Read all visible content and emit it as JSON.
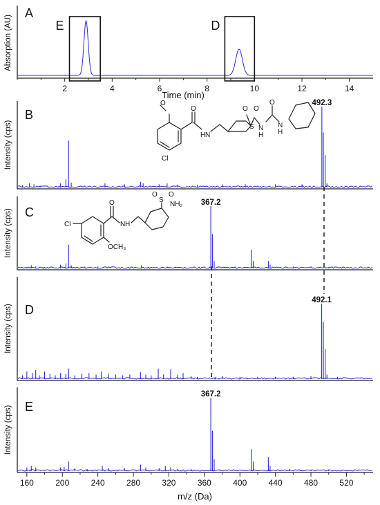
{
  "panels": [
    {
      "letter": "A"
    },
    {
      "letter": "B"
    },
    {
      "letter": "C"
    },
    {
      "letter": "D"
    },
    {
      "letter": "E"
    }
  ],
  "chromatogram": {
    "ylabel": "Absorption (AU)",
    "xlabel": "Time (min)",
    "box_labels": [
      "E",
      "D"
    ]
  },
  "spectra": {
    "ylabel": "Intensity (cps)",
    "xlabel": "m/z (Da)"
  },
  "structures": {
    "B": {
      "labels": [
        "O",
        "O",
        "H",
        "N",
        "S",
        "O",
        "O",
        "N",
        "H",
        "O",
        "N",
        "H",
        "Cl"
      ]
    },
    "C": {
      "labels": [
        "Cl",
        "O",
        "N",
        "H",
        "OCH₃",
        "S",
        "O",
        "O",
        "NH₂"
      ]
    }
  },
  "chart_data": [
    {
      "type": "line",
      "panel": "A",
      "xlabel": "Time (min)",
      "ylabel": "Absorption (AU)",
      "xlim": [
        0,
        15
      ],
      "xticks": [
        2,
        4,
        6,
        8,
        10,
        12,
        14
      ],
      "peaks": [
        {
          "x": 2.9,
          "height": 1.0,
          "width": 0.09
        },
        {
          "x": 9.35,
          "height": 0.48,
          "width": 0.14
        }
      ],
      "boxes": [
        {
          "label": "E",
          "x_range": [
            2.2,
            3.5
          ]
        },
        {
          "label": "D",
          "x_range": [
            8.75,
            10.0
          ]
        }
      ]
    },
    {
      "type": "bar",
      "panel": "B",
      "xlabel": "m/z (Da)",
      "ylabel": "Intensity (cps)",
      "xlim": [
        150,
        550
      ],
      "xticks": [
        160,
        200,
        240,
        280,
        320,
        360,
        400,
        440,
        480,
        520
      ],
      "annotations": [
        {
          "label": "492.3",
          "x": 492.3
        }
      ],
      "peaks": [
        [
          155,
          0.03
        ],
        [
          163,
          0.05
        ],
        [
          168,
          0.04
        ],
        [
          175,
          0.02
        ],
        [
          198,
          0.05
        ],
        [
          204,
          0.1
        ],
        [
          207,
          0.58
        ],
        [
          210,
          0.06
        ],
        [
          248,
          0.05
        ],
        [
          270,
          0.04
        ],
        [
          288,
          0.07
        ],
        [
          291,
          0.05
        ],
        [
          309,
          0.04
        ],
        [
          318,
          0.05
        ],
        [
          330,
          0.03
        ],
        [
          352,
          0.03
        ],
        [
          380,
          0.04
        ],
        [
          406,
          0.04
        ],
        [
          440,
          0.04
        ],
        [
          470,
          0.04
        ],
        [
          492.3,
          1.0
        ],
        [
          494,
          0.68
        ],
        [
          496,
          0.4
        ],
        [
          498,
          0.05
        ]
      ]
    },
    {
      "type": "bar",
      "panel": "C",
      "xlabel": "m/z (Da)",
      "ylabel": "Intensity (cps)",
      "xlim": [
        150,
        550
      ],
      "xticks": [
        160,
        200,
        240,
        280,
        320,
        360,
        400,
        440,
        480,
        520
      ],
      "annotations": [
        {
          "label": "367.2",
          "x": 367.2
        }
      ],
      "peaks": [
        [
          160,
          0.02
        ],
        [
          165,
          0.05
        ],
        [
          170,
          0.03
        ],
        [
          178,
          0.02
        ],
        [
          198,
          0.06
        ],
        [
          204,
          0.08
        ],
        [
          207,
          0.38
        ],
        [
          210,
          0.05
        ],
        [
          240,
          0.03
        ],
        [
          289,
          0.05
        ],
        [
          320,
          0.02
        ],
        [
          367.2,
          1.0
        ],
        [
          369,
          0.55
        ],
        [
          371,
          0.12
        ],
        [
          413,
          0.3
        ],
        [
          415,
          0.12
        ],
        [
          432,
          0.12
        ],
        [
          434,
          0.06
        ],
        [
          460,
          0.03
        ],
        [
          500,
          0.02
        ]
      ]
    },
    {
      "type": "bar",
      "panel": "D",
      "xlabel": "m/z (Da)",
      "ylabel": "Intensity (cps)",
      "xlim": [
        150,
        550
      ],
      "xticks": [
        160,
        200,
        240,
        280,
        320,
        360,
        400,
        440,
        480,
        520
      ],
      "annotations": [
        {
          "label": "492.1",
          "x": 492.1
        }
      ],
      "peaks": [
        [
          155,
          0.05
        ],
        [
          160,
          0.1
        ],
        [
          166,
          0.08
        ],
        [
          170,
          0.12
        ],
        [
          174,
          0.05
        ],
        [
          180,
          0.1
        ],
        [
          186,
          0.07
        ],
        [
          192,
          0.05
        ],
        [
          198,
          0.08
        ],
        [
          204,
          0.07
        ],
        [
          207,
          0.14
        ],
        [
          214,
          0.05
        ],
        [
          222,
          0.07
        ],
        [
          230,
          0.08
        ],
        [
          238,
          0.06
        ],
        [
          244,
          0.1
        ],
        [
          252,
          0.07
        ],
        [
          260,
          0.06
        ],
        [
          268,
          0.05
        ],
        [
          276,
          0.06
        ],
        [
          288,
          0.09
        ],
        [
          294,
          0.06
        ],
        [
          300,
          0.05
        ],
        [
          308,
          0.14
        ],
        [
          314,
          0.06
        ],
        [
          322,
          0.13
        ],
        [
          330,
          0.06
        ],
        [
          336,
          0.08
        ],
        [
          345,
          0.04
        ],
        [
          352,
          0.03
        ],
        [
          372,
          0.03
        ],
        [
          380,
          0.04
        ],
        [
          400,
          0.03
        ],
        [
          420,
          0.03
        ],
        [
          440,
          0.03
        ],
        [
          460,
          0.03
        ],
        [
          480,
          0.04
        ],
        [
          492.1,
          1.0
        ],
        [
          494,
          0.76
        ],
        [
          496,
          0.4
        ],
        [
          498,
          0.06
        ],
        [
          510,
          0.03
        ]
      ]
    },
    {
      "type": "bar",
      "panel": "E",
      "xlabel": "m/z (Da)",
      "ylabel": "Intensity (cps)",
      "xlim": [
        150,
        550
      ],
      "xticks": [
        160,
        200,
        240,
        280,
        320,
        360,
        400,
        440,
        480,
        520
      ],
      "annotations": [
        {
          "label": "367.2",
          "x": 367.2
        }
      ],
      "peaks": [
        [
          160,
          0.05
        ],
        [
          165,
          0.07
        ],
        [
          170,
          0.05
        ],
        [
          198,
          0.05
        ],
        [
          202,
          0.06
        ],
        [
          207,
          0.13
        ],
        [
          214,
          0.04
        ],
        [
          228,
          0.03
        ],
        [
          245,
          0.07
        ],
        [
          252,
          0.04
        ],
        [
          270,
          0.04
        ],
        [
          288,
          0.09
        ],
        [
          294,
          0.05
        ],
        [
          309,
          0.04
        ],
        [
          316,
          0.07
        ],
        [
          322,
          0.05
        ],
        [
          330,
          0.03
        ],
        [
          345,
          0.03
        ],
        [
          367.2,
          1.0
        ],
        [
          369,
          0.55
        ],
        [
          371,
          0.16
        ],
        [
          413,
          0.3
        ],
        [
          415,
          0.13
        ],
        [
          432,
          0.19
        ],
        [
          434,
          0.07
        ],
        [
          456,
          0.03
        ],
        [
          480,
          0.02
        ],
        [
          500,
          0.02
        ]
      ]
    }
  ]
}
